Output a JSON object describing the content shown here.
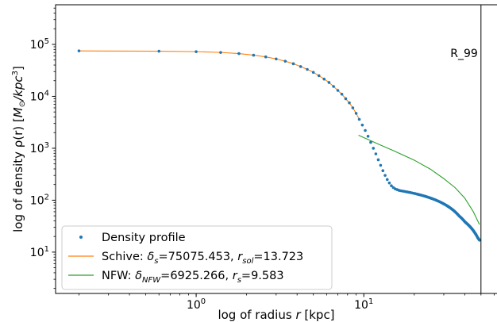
{
  "chart_data": {
    "type": "scatter",
    "xscale": "log",
    "yscale": "log",
    "xlim": [
      0.145,
      63
    ],
    "ylim": [
      1.6,
      580000
    ],
    "xlabel_html": "log of radius <tspan font-style=\"italic\">r</tspan> [kpc]",
    "ylabel_html": "log of density ρ(r) [<tspan font-style=\"italic\">M</tspan><tspan font-size=\"10\" dy=\"3\">⊙</tspan><tspan dy=\"-3\" font-style=\"italic\">/kpc</tspan><tspan font-size=\"10\" dy=\"-6\">3</tspan><tspan dy=\"6\">]</tspan>",
    "x_ticks": [
      {
        "value": 1,
        "base": "10",
        "exp": "0"
      },
      {
        "value": 10,
        "base": "10",
        "exp": "1"
      }
    ],
    "y_ticks": [
      {
        "value": 10,
        "base": "10",
        "exp": "1"
      },
      {
        "value": 100,
        "base": "10",
        "exp": "2"
      },
      {
        "value": 1000,
        "base": "10",
        "exp": "3"
      },
      {
        "value": 10000,
        "base": "10",
        "exp": "4"
      },
      {
        "value": 100000,
        "base": "10",
        "exp": "5"
      }
    ],
    "vline": {
      "x": 50,
      "label": "R_99"
    },
    "series": [
      {
        "name_html": "Density profile",
        "kind": "scatter",
        "color": "#1f77b4",
        "points": [
          [
            0.2,
            75000
          ],
          [
            0.6,
            74000
          ],
          [
            1.0,
            72500
          ],
          [
            1.4,
            70000
          ],
          [
            1.8,
            66500
          ],
          [
            2.2,
            62000
          ],
          [
            2.6,
            57500
          ],
          [
            3.0,
            52500
          ],
          [
            3.4,
            47500
          ],
          [
            3.8,
            42500
          ],
          [
            4.2,
            37500
          ],
          [
            4.6,
            33000
          ],
          [
            5.0,
            29000
          ],
          [
            5.4,
            25000
          ],
          [
            5.8,
            21500
          ],
          [
            6.2,
            18500
          ],
          [
            6.6,
            15500
          ],
          [
            7.0,
            13000
          ],
          [
            7.4,
            11000
          ],
          [
            7.8,
            9000
          ],
          [
            8.2,
            7500
          ],
          [
            8.6,
            6000
          ],
          [
            9.0,
            4700
          ],
          [
            9.4,
            3600
          ],
          [
            9.8,
            2800
          ],
          [
            10.2,
            2200
          ],
          [
            10.6,
            1700
          ],
          [
            11.0,
            1300
          ],
          [
            11.4,
            1000
          ],
          [
            11.8,
            780
          ],
          [
            12.2,
            600
          ],
          [
            12.6,
            470
          ],
          [
            13.0,
            370
          ],
          [
            13.4,
            300
          ],
          [
            13.8,
            250
          ],
          [
            14.2,
            215
          ],
          [
            14.6,
            190
          ],
          [
            15.0,
            175
          ],
          [
            15.4,
            165
          ],
          [
            15.8,
            160
          ],
          [
            16.2,
            155
          ],
          [
            16.6,
            152
          ],
          [
            17.0,
            150
          ],
          [
            17.4,
            148
          ],
          [
            17.8,
            146
          ],
          [
            18.2,
            144
          ],
          [
            18.6,
            142
          ],
          [
            19.0,
            140
          ],
          [
            19.4,
            138
          ],
          [
            19.8,
            136
          ],
          [
            20.2,
            134
          ],
          [
            20.6,
            132
          ],
          [
            21.0,
            130
          ],
          [
            21.4,
            128
          ],
          [
            21.8,
            126
          ],
          [
            22.2,
            124
          ],
          [
            22.6,
            122
          ],
          [
            23.0,
            120
          ],
          [
            23.4,
            118
          ],
          [
            23.8,
            116
          ],
          [
            24.2,
            114
          ],
          [
            24.6,
            112
          ],
          [
            25.0,
            110
          ],
          [
            25.4,
            108
          ],
          [
            25.8,
            106
          ],
          [
            26.2,
            104
          ],
          [
            26.6,
            102
          ],
          [
            27.0,
            100
          ],
          [
            27.4,
            98
          ],
          [
            27.8,
            96
          ],
          [
            28.2,
            94
          ],
          [
            28.6,
            92
          ],
          [
            29.0,
            90
          ],
          [
            29.4,
            88
          ],
          [
            29.8,
            86
          ],
          [
            30.2,
            84
          ],
          [
            30.6,
            82
          ],
          [
            31.0,
            80
          ],
          [
            31.4,
            78
          ],
          [
            31.8,
            76
          ],
          [
            32.2,
            74
          ],
          [
            32.6,
            72
          ],
          [
            33.0,
            70
          ],
          [
            33.4,
            68
          ],
          [
            33.8,
            66
          ],
          [
            34.2,
            64
          ],
          [
            34.6,
            62
          ],
          [
            35.0,
            60
          ],
          [
            35.4,
            58
          ],
          [
            35.8,
            56
          ],
          [
            36.2,
            54
          ],
          [
            36.6,
            52
          ],
          [
            37.0,
            50
          ],
          [
            37.4,
            48.5
          ],
          [
            37.8,
            47
          ],
          [
            38.2,
            45.5
          ],
          [
            38.6,
            44
          ],
          [
            39.0,
            42.5
          ],
          [
            39.4,
            41
          ],
          [
            39.8,
            39.5
          ],
          [
            40.2,
            38
          ],
          [
            40.6,
            37
          ],
          [
            41.0,
            36
          ],
          [
            41.4,
            35
          ],
          [
            41.8,
            34
          ],
          [
            42.2,
            33
          ],
          [
            42.6,
            32
          ],
          [
            43.0,
            31
          ],
          [
            43.4,
            30
          ],
          [
            43.8,
            29
          ],
          [
            44.2,
            28
          ],
          [
            44.6,
            27
          ],
          [
            45.0,
            26
          ],
          [
            45.4,
            25
          ],
          [
            45.8,
            24
          ],
          [
            46.2,
            23
          ],
          [
            46.6,
            22
          ],
          [
            47.0,
            21
          ],
          [
            47.4,
            20
          ],
          [
            47.8,
            19
          ],
          [
            48.2,
            18.3
          ],
          [
            48.6,
            17.6
          ],
          [
            49.0,
            17
          ]
        ]
      },
      {
        "name_html": "Schive: <tspan font-style=\"italic\">δ</tspan><tspan font-size=\"10\" dy=\"4\" font-style=\"italic\">s</tspan><tspan dy=\"-4\">=75075.453, </tspan><tspan font-style=\"italic\">r</tspan><tspan font-size=\"10\" dy=\"4\" font-style=\"italic\">sol</tspan><tspan dy=\"-4\">=13.723</tspan>",
        "kind": "line",
        "color": "#ff7f0e",
        "points": [
          [
            0.2,
            75000
          ],
          [
            0.6,
            74000
          ],
          [
            1.0,
            72500
          ],
          [
            1.4,
            70000
          ],
          [
            1.8,
            66500
          ],
          [
            2.2,
            62000
          ],
          [
            2.6,
            57500
          ],
          [
            3.0,
            52500
          ],
          [
            3.4,
            47500
          ],
          [
            3.8,
            42500
          ],
          [
            4.2,
            37500
          ],
          [
            4.6,
            33000
          ],
          [
            5.0,
            29000
          ],
          [
            5.4,
            25000
          ],
          [
            5.8,
            21500
          ],
          [
            6.2,
            18500
          ],
          [
            6.6,
            15500
          ],
          [
            7.0,
            13000
          ],
          [
            7.4,
            11000
          ],
          [
            7.8,
            9000
          ],
          [
            8.2,
            7500
          ],
          [
            8.6,
            6000
          ],
          [
            9.0,
            4700
          ],
          [
            9.4,
            3600
          ]
        ]
      },
      {
        "name_html": "NFW: <tspan font-style=\"italic\">δ</tspan><tspan font-size=\"10\" dy=\"4\" font-style=\"italic\">NFW</tspan><tspan dy=\"-4\">=6925.266, </tspan><tspan font-style=\"italic\">r</tspan><tspan font-size=\"10\" dy=\"4\" font-style=\"italic\">s</tspan><tspan dy=\"-4\">=9.583</tspan>",
        "kind": "line",
        "color": "#2ca02c",
        "points": [
          [
            9.3,
            1780
          ],
          [
            12,
            1230
          ],
          [
            15,
            900
          ],
          [
            20,
            590
          ],
          [
            25,
            395
          ],
          [
            30,
            260
          ],
          [
            35,
            175
          ],
          [
            40,
            110
          ],
          [
            45,
            60
          ],
          [
            49,
            34
          ]
        ]
      }
    ],
    "legend_position": "lower-left"
  }
}
